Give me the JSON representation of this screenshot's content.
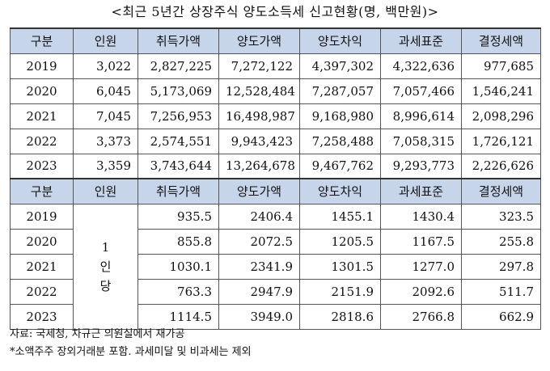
{
  "title": "<최근 5년간 상장주식 양도소득세 신고현황(명, 백만원)>",
  "headers": [
    "구분",
    "인원",
    "취득가액",
    "양도가액",
    "양도차익",
    "과세표준",
    "결정세액"
  ],
  "totals": [
    {
      "year": "2019",
      "people": "3,022",
      "acquisition": "2,827,225",
      "transfer": "7,272,122",
      "gain": "4,397,302",
      "tax_base": "4,322,636",
      "tax": "977,685"
    },
    {
      "year": "2020",
      "people": "6,045",
      "acquisition": "5,173,069",
      "transfer": "12,528,484",
      "gain": "7,287,057",
      "tax_base": "7,057,466",
      "tax": "1,546,241"
    },
    {
      "year": "2021",
      "people": "7,045",
      "acquisition": "7,256,953",
      "transfer": "16,498,987",
      "gain": "9,168,980",
      "tax_base": "8,996,614",
      "tax": "2,098,296"
    },
    {
      "year": "2022",
      "people": "3,373",
      "acquisition": "2,574,551",
      "transfer": "9,943,423",
      "gain": "7,258,488",
      "tax_base": "7,058,315",
      "tax": "1,726,121"
    },
    {
      "year": "2023",
      "people": "3,359",
      "acquisition": "3,743,644",
      "transfer": "13,264,678",
      "gain": "9,467,762",
      "tax_base": "9,293,773",
      "tax": "2,226,626"
    }
  ],
  "per_person_label": [
    "1",
    "인",
    "당"
  ],
  "per_person": [
    {
      "year": "2019",
      "acquisition": "935.5",
      "transfer": "2406.4",
      "gain": "1455.1",
      "tax_base": "1430.4",
      "tax": "323.5"
    },
    {
      "year": "2020",
      "acquisition": "855.8",
      "transfer": "2072.5",
      "gain": "1205.5",
      "tax_base": "1167.5",
      "tax": "255.8"
    },
    {
      "year": "2021",
      "acquisition": "1030.1",
      "transfer": "2341.9",
      "gain": "1301.5",
      "tax_base": "1277.0",
      "tax": "297.8"
    },
    {
      "year": "2022",
      "acquisition": "763.3",
      "transfer": "2947.9",
      "gain": "2151.9",
      "tax_base": "2092.6",
      "tax": "511.7"
    },
    {
      "year": "2023",
      "acquisition": "1114.5",
      "transfer": "3949.0",
      "gain": "2818.6",
      "tax_base": "2766.8",
      "tax": "662.9"
    }
  ],
  "notes": {
    "source": "자료: 국세청, 차규근 의원실에서 재가공",
    "footnote": "*소액주주 장외거래분 포함. 과세미달 및 비과세는 제외"
  },
  "colors": {
    "header_bg": "#c7d5ea",
    "border": "#555555"
  }
}
